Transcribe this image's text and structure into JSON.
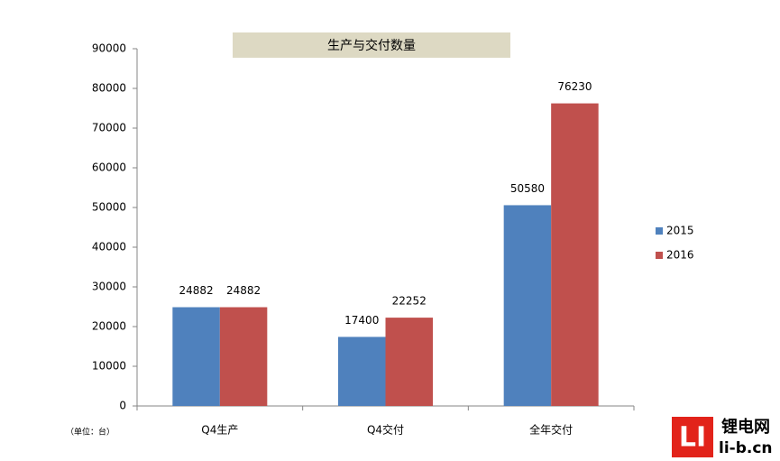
{
  "chart_data": {
    "type": "bar",
    "title": "生产与交付数量",
    "categories": [
      "Q4生产",
      "Q4交付",
      "全年交付"
    ],
    "series": [
      {
        "name": "2015",
        "color": "#4f81bd",
        "values": [
          24882,
          17400,
          50580
        ]
      },
      {
        "name": "2016",
        "color": "#c0504d",
        "values": [
          24882,
          22252,
          76230
        ]
      }
    ],
    "ylim": [
      0,
      90000
    ],
    "yticks": [
      0,
      10000,
      20000,
      30000,
      40000,
      50000,
      60000,
      70000,
      80000,
      90000
    ],
    "grid": false,
    "legend": "right",
    "note": "（单位：台）",
    "watermark": {
      "logo": "LI",
      "name": "锂电网",
      "site": "li-b.cn"
    }
  }
}
